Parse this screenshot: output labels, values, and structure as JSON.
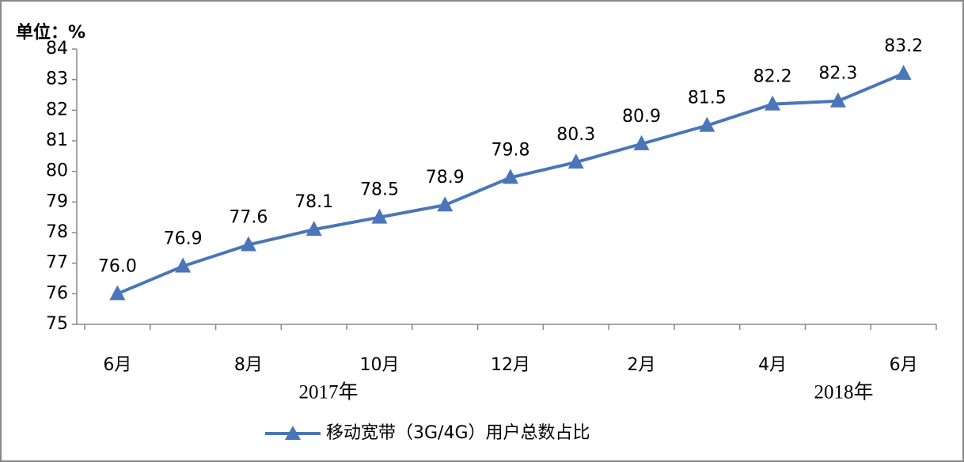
{
  "chart_data": {
    "type": "line",
    "unit_label": "单位：%",
    "categories": [
      "6月",
      null,
      "8月",
      null,
      "10月",
      null,
      "12月",
      null,
      "2月",
      null,
      "4月",
      null,
      "6月"
    ],
    "year_labels": [
      "2017年",
      "2018年"
    ],
    "series": [
      {
        "name": "移动宽带（3G/4G）用户总数占比",
        "color": "#4a76b8",
        "values": [
          76.0,
          76.9,
          77.6,
          78.1,
          78.5,
          78.9,
          79.8,
          80.3,
          80.9,
          81.5,
          82.2,
          82.3,
          83.2
        ],
        "value_labels": [
          "76.0",
          "76.9",
          "77.6",
          "78.1",
          "78.5",
          "78.9",
          "79.8",
          "80.3",
          "80.9",
          "81.5",
          "82.2",
          "82.3",
          "83.2"
        ]
      }
    ],
    "ylim": [
      75,
      84
    ],
    "yticks": [
      75,
      76,
      77,
      78,
      79,
      80,
      81,
      82,
      83,
      84
    ],
    "grid": false
  }
}
